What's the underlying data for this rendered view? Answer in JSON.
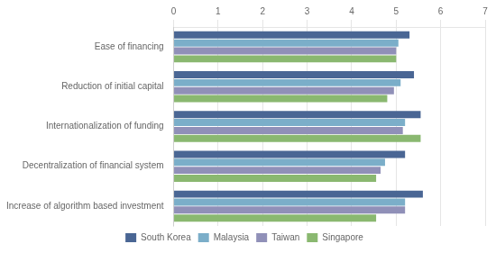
{
  "chart_data": {
    "type": "bar",
    "orientation": "horizontal",
    "categories": [
      "Ease of financing",
      "Reduction of initial capital",
      "Internationalization of funding",
      "Decentralization of financial system",
      "Increase of algorithm based investment"
    ],
    "series": [
      {
        "name": "South Korea",
        "color": "#4a6694",
        "values": [
          5.3,
          5.4,
          5.55,
          5.2,
          5.6
        ]
      },
      {
        "name": "Malaysia",
        "color": "#7baec9",
        "values": [
          5.05,
          5.1,
          5.2,
          4.75,
          5.2
        ]
      },
      {
        "name": "Taiwan",
        "color": "#9090b8",
        "values": [
          5.0,
          4.95,
          5.15,
          4.65,
          5.2
        ]
      },
      {
        "name": "Singapore",
        "color": "#8ab870",
        "values": [
          5.0,
          4.8,
          5.55,
          4.55,
          4.55
        ]
      }
    ],
    "xlim": [
      0,
      7
    ],
    "xticks": [
      0,
      1,
      2,
      3,
      4,
      5,
      6,
      7
    ],
    "grid": true,
    "legend": "bottom"
  }
}
